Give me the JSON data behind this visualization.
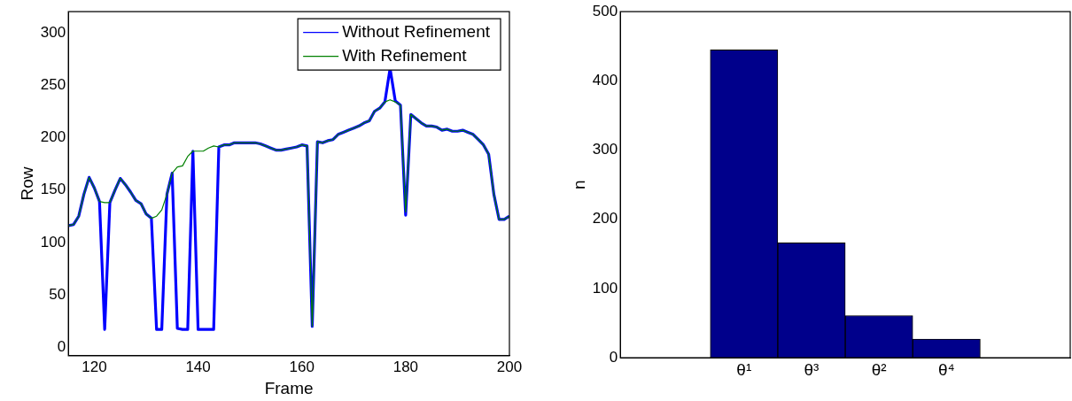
{
  "chart_data": [
    {
      "type": "line",
      "xlabel": "Frame",
      "ylabel": "Row",
      "xlim": [
        115,
        200
      ],
      "xticks": [
        120,
        140,
        160,
        180,
        200
      ],
      "ylim": [
        -8,
        320
      ],
      "yticks": [
        0,
        50,
        100,
        150,
        200,
        250,
        300
      ],
      "legend": "top right",
      "grid": false,
      "x": [
        115,
        116,
        117,
        118,
        119,
        120,
        121,
        122,
        123,
        124,
        125,
        126,
        127,
        128,
        129,
        130,
        131,
        132,
        133,
        134,
        135,
        136,
        137,
        138,
        139,
        140,
        141,
        142,
        143,
        144,
        145,
        146,
        147,
        148,
        149,
        150,
        151,
        152,
        153,
        154,
        155,
        156,
        157,
        158,
        159,
        160,
        161,
        162,
        163,
        164,
        165,
        166,
        167,
        168,
        169,
        170,
        171,
        172,
        173,
        174,
        175,
        176,
        177,
        178,
        179,
        180,
        181,
        182,
        183,
        184,
        185,
        186,
        187,
        188,
        189,
        190,
        191,
        192,
        193,
        194,
        195,
        196,
        197,
        198,
        199,
        200
      ],
      "series": [
        {
          "name": "Without Refinement",
          "color": "#0000ff",
          "values": [
            116,
            117,
            125,
            146,
            162,
            152,
            139,
            17,
            138,
            150,
            161,
            155,
            148,
            140,
            137,
            127,
            123,
            17,
            17,
            146,
            166,
            18,
            17,
            17,
            187,
            17,
            17,
            17,
            17,
            191,
            193,
            193,
            195,
            195,
            195,
            195,
            195,
            194,
            192,
            190,
            188,
            188,
            189,
            190,
            191,
            193,
            192,
            20,
            196,
            195,
            197,
            198,
            203,
            205,
            207,
            209,
            211,
            214,
            216,
            225,
            228,
            234,
            266,
            235,
            231,
            126,
            222,
            218,
            214,
            211,
            211,
            210,
            207,
            208,
            206,
            206,
            207,
            205,
            203,
            198,
            193,
            184,
            146,
            122,
            122,
            125
          ]
        },
        {
          "name": "With Refinement",
          "color": "#008000",
          "values": [
            116,
            117,
            125,
            146,
            162,
            152,
            139,
            138,
            138,
            150,
            161,
            155,
            148,
            140,
            137,
            127,
            123,
            125,
            131,
            146,
            166,
            172,
            173,
            182,
            187,
            187,
            187,
            190,
            192,
            191,
            193,
            193,
            195,
            195,
            195,
            195,
            195,
            194,
            192,
            190,
            188,
            188,
            189,
            190,
            191,
            193,
            192,
            20,
            196,
            195,
            197,
            198,
            203,
            205,
            207,
            209,
            211,
            214,
            216,
            225,
            228,
            234,
            236,
            234,
            231,
            129,
            222,
            218,
            214,
            211,
            211,
            210,
            207,
            208,
            206,
            206,
            207,
            205,
            203,
            198,
            193,
            184,
            146,
            122,
            122,
            125
          ]
        }
      ]
    },
    {
      "type": "bar",
      "ylabel": "n",
      "categories": [
        "θ¹",
        "θ³",
        "θ²",
        "θ⁴"
      ],
      "values": [
        445,
        166,
        61,
        27
      ],
      "color": "#00008b",
      "ylim": [
        0,
        500
      ],
      "yticks": [
        0,
        100,
        200,
        300,
        400,
        500
      ],
      "grid": false,
      "legend": false
    }
  ]
}
